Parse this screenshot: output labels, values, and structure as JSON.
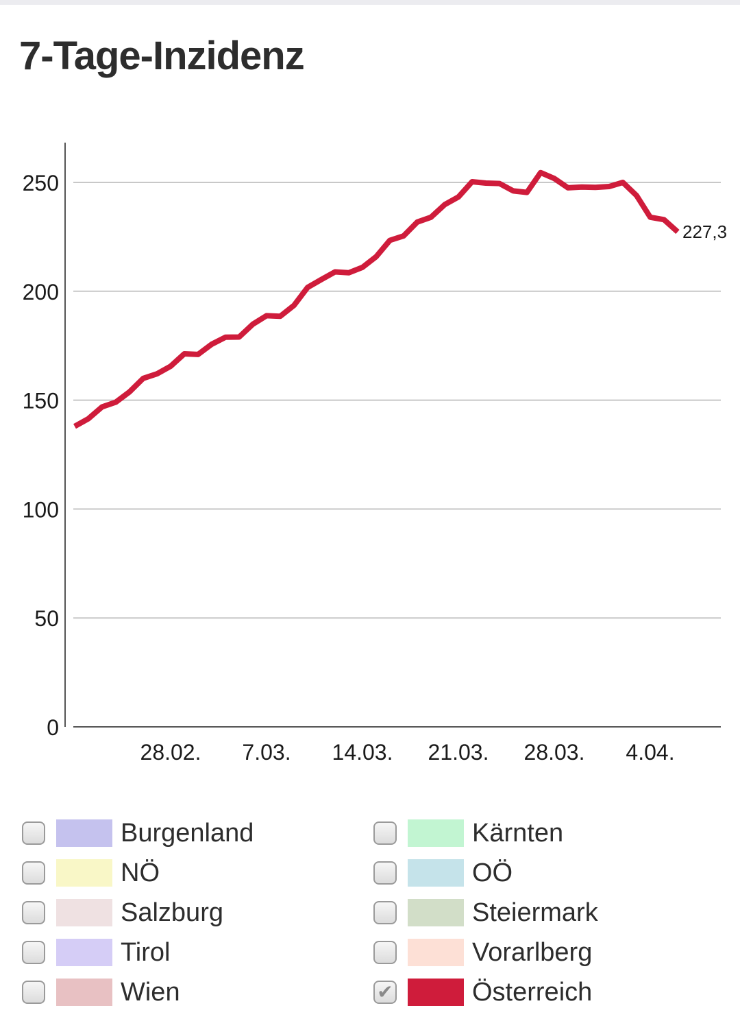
{
  "title": "7-Tage-Inzidenz",
  "colors": {
    "line": "#cf1c3b",
    "grid": "#c8c8c8",
    "axis": "#555555"
  },
  "chart_data": {
    "type": "line",
    "title": "7-Tage-Inzidenz",
    "xlabel": "",
    "ylabel": "",
    "ylim": [
      0,
      270
    ],
    "yticks": [
      0,
      50,
      100,
      150,
      200,
      250
    ],
    "xlim": [
      "2021-02-21",
      "2021-04-10"
    ],
    "xticks": [
      {
        "date": "2021-02-28",
        "label": "28.02."
      },
      {
        "date": "2021-03-07",
        "label": "7.03."
      },
      {
        "date": "2021-03-14",
        "label": "14.03."
      },
      {
        "date": "2021-03-21",
        "label": "21.03."
      },
      {
        "date": "2021-03-28",
        "label": "28.03."
      },
      {
        "date": "2021-04-04",
        "label": "4.04."
      }
    ],
    "grid": true,
    "series": [
      {
        "name": "Österreich",
        "color": "#cf1c3b",
        "x": [
          "2021-02-21",
          "2021-02-22",
          "2021-02-23",
          "2021-02-24",
          "2021-02-25",
          "2021-02-26",
          "2021-02-27",
          "2021-02-28",
          "2021-03-01",
          "2021-03-02",
          "2021-03-03",
          "2021-03-04",
          "2021-03-05",
          "2021-03-06",
          "2021-03-07",
          "2021-03-08",
          "2021-03-09",
          "2021-03-10",
          "2021-03-11",
          "2021-03-12",
          "2021-03-13",
          "2021-03-14",
          "2021-03-15",
          "2021-03-16",
          "2021-03-17",
          "2021-03-18",
          "2021-03-19",
          "2021-03-20",
          "2021-03-21",
          "2021-03-22",
          "2021-03-23",
          "2021-03-24",
          "2021-03-25",
          "2021-03-26",
          "2021-03-27",
          "2021-03-28",
          "2021-03-29",
          "2021-03-30",
          "2021-03-31",
          "2021-04-01",
          "2021-04-02",
          "2021-04-03",
          "2021-04-04",
          "2021-04-05",
          "2021-04-06"
        ],
        "values": [
          138.0,
          141.5,
          146.9,
          149.1,
          153.8,
          160.0,
          162.1,
          165.6,
          171.3,
          171.0,
          175.7,
          178.9,
          179.0,
          184.9,
          188.8,
          188.5,
          193.5,
          201.8,
          205.4,
          208.9,
          208.5,
          211.0,
          215.9,
          223.4,
          225.4,
          231.8,
          234.0,
          239.8,
          243.3,
          250.3,
          249.7,
          249.5,
          246.1,
          245.4,
          254.5,
          251.8,
          247.5,
          247.9,
          247.7,
          248.1,
          250.0,
          244.0,
          234.0,
          232.9,
          227.3
        ]
      }
    ],
    "end_label": "227,3"
  },
  "legend": {
    "items": [
      {
        "label": "Burgenland",
        "color": "#c5c2ee",
        "checked": false
      },
      {
        "label": "Kärnten",
        "color": "#c2f5d2",
        "checked": false
      },
      {
        "label": "NÖ",
        "color": "#f9f7c7",
        "checked": false
      },
      {
        "label": "OÖ",
        "color": "#c5e3ea",
        "checked": false
      },
      {
        "label": "Salzburg",
        "color": "#efe1e2",
        "checked": false
      },
      {
        "label": "Steiermark",
        "color": "#d2dec8",
        "checked": false
      },
      {
        "label": "Tirol",
        "color": "#d5cdf6",
        "checked": false
      },
      {
        "label": "Vorarlberg",
        "color": "#fde0d6",
        "checked": false
      },
      {
        "label": "Wien",
        "color": "#e8c1c3",
        "checked": false
      },
      {
        "label": "Österreich",
        "color": "#cf1c3b",
        "checked": true
      }
    ]
  }
}
